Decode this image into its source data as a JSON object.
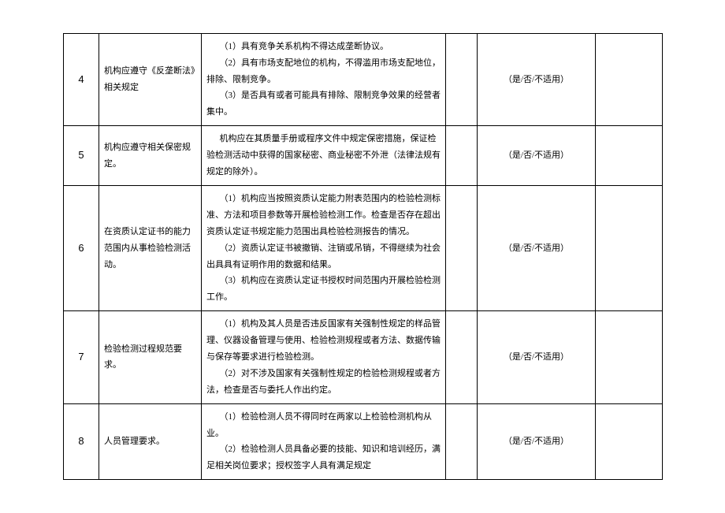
{
  "options_text": "（是/否/不适用）",
  "rows": [
    {
      "num": "4",
      "requirement": "机构应遵守《反垄断法》相关规定",
      "details": [
        "（1）具有竞争关系机构不得达成垄断协议。",
        "（2）具有市场支配地位的机构，不得滥用市场支配地位，排除、限制竞争。",
        "（3）是否具有或者可能具有排除、限制竞争效果的经营者集中。"
      ]
    },
    {
      "num": "5",
      "requirement": "机构应遵守相关保密规定。",
      "details": [
        "机构应在其质量手册或程序文件中规定保密措施，保证检验检测活动中获得的国家秘密、商业秘密不外泄（法律法规有规定的除外）。"
      ]
    },
    {
      "num": "6",
      "requirement": "在资质认定证书的能力范围内从事检验检测活动。",
      "details": [
        "（1）机构应当按照资质认定能力附表范围内的检验检测标准、方法和项目参数等开展检验检测工作。检查是否存在超出资质认定证书规定能力范围出具检验检测报告的情况。",
        "（2）资质认定证书被撤销、注销或吊销，不得继续为社会出具具有证明作用的数据和结果。",
        "（3）机构应在资质认定证书授权时间范围内开展检验检测工作。"
      ]
    },
    {
      "num": "7",
      "requirement": "检验检测过程规范要求。",
      "details": [
        "（1）机构及其人员是否违反国家有关强制性规定的样品管理、仪器设备管理与使用、检验检测规程或者方法、数据传输与保存等要求进行检验检测。",
        "（2）对不涉及国家有关强制性规定的检验检测规程或者方法，检查是否与委托人作出约定。"
      ]
    },
    {
      "num": "8",
      "requirement": "人员管理要求。",
      "details": [
        "（1）检验检测人员不得同时在两家以上检验检测机构从业。",
        "（2）检验检测人员具备必要的技能、知识和培训经历，满足相关岗位要求；授权签字人具有满足规定"
      ]
    }
  ]
}
